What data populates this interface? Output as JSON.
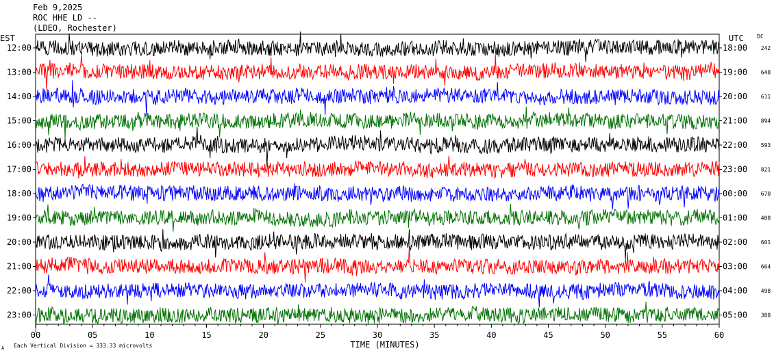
{
  "header": {
    "date": "Feb 9,2025",
    "station": "ROC HHE LD --",
    "network": "(LDEO, Rochester)"
  },
  "chart_data": {
    "type": "line",
    "left_axis_label": "EST",
    "right_axis_label": "UTC",
    "dc_label": "DC",
    "xlabel": "TIME (MINUTES)",
    "xlim": [
      0,
      60
    ],
    "x_ticks": [
      "00",
      "05",
      "10",
      "15",
      "20",
      "25",
      "30",
      "35",
      "40",
      "45",
      "50",
      "55",
      "60"
    ],
    "trace_colors": [
      "#000000",
      "#ff0000",
      "#0000ff",
      "#007000"
    ],
    "rows": [
      {
        "est": "12:00",
        "utc": "18:00",
        "dc": "242"
      },
      {
        "est": "13:00",
        "utc": "19:00",
        "dc": "648"
      },
      {
        "est": "14:00",
        "utc": "20:00",
        "dc": "611"
      },
      {
        "est": "15:00",
        "utc": "21:00",
        "dc": "894"
      },
      {
        "est": "16:00",
        "utc": "22:00",
        "dc": "593"
      },
      {
        "est": "17:00",
        "utc": "23:00",
        "dc": "821"
      },
      {
        "est": "18:00",
        "utc": "00:00",
        "dc": "670"
      },
      {
        "est": "19:00",
        "utc": "01:00",
        "dc": "408"
      },
      {
        "est": "20:00",
        "utc": "02:00",
        "dc": "601"
      },
      {
        "est": "21:00",
        "utc": "03:00",
        "dc": "664"
      },
      {
        "est": "22:00",
        "utc": "04:00",
        "dc": "498"
      },
      {
        "est": "23:00",
        "utc": "05:00",
        "dc": "388"
      }
    ],
    "footer_mark": "A",
    "scale_note": "Each Vertical Division = 333.33 microvolts"
  }
}
